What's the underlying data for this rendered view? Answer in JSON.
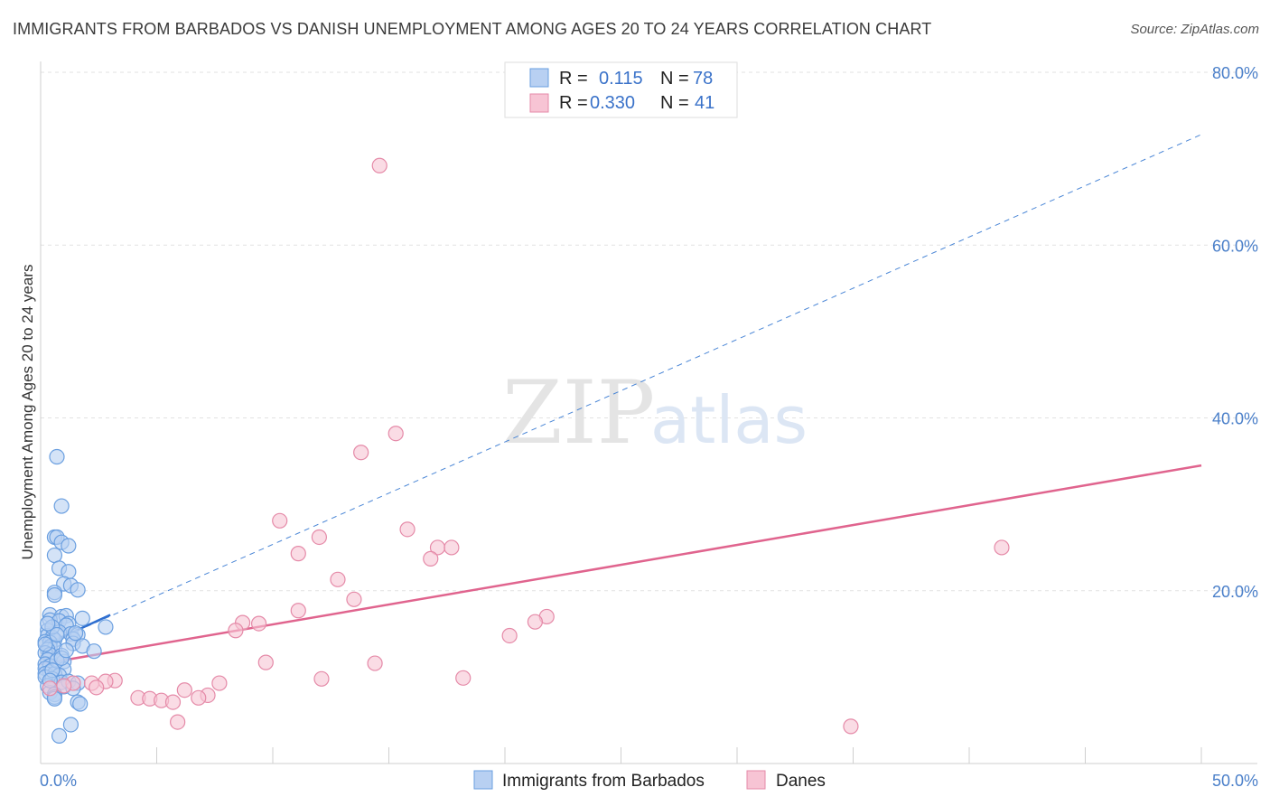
{
  "title": "IMMIGRANTS FROM BARBADOS VS DANISH UNEMPLOYMENT AMONG AGES 20 TO 24 YEARS CORRELATION CHART",
  "source": "Source: ZipAtlas.com",
  "watermark": {
    "zip": "ZIP",
    "atlas": "atlas"
  },
  "legend": {
    "rows": [
      {
        "r_label": "R =",
        "r_value": "0.115",
        "n_label": "N =",
        "n_value": "78"
      },
      {
        "r_label": "R =",
        "r_value": "0.330",
        "n_label": "N =",
        "n_value": "41"
      }
    ]
  },
  "chart_data": {
    "type": "scatter",
    "title": "IMMIGRANTS FROM BARBADOS VS DANISH UNEMPLOYMENT AMONG AGES 20 TO 24 YEARS CORRELATION CHART",
    "xlabel": "",
    "ylabel": "Unemployment Among Ages 20 to 24 years",
    "xlim": [
      0,
      50
    ],
    "ylim": [
      0,
      80
    ],
    "x_tick_labels": [
      {
        "value": 0,
        "label": "0.0%"
      },
      {
        "value": 50,
        "label": "50.0%"
      }
    ],
    "y_tick_labels": [
      {
        "value": 20,
        "label": "20.0%"
      },
      {
        "value": 40,
        "label": "40.0%"
      },
      {
        "value": 60,
        "label": "60.0%"
      },
      {
        "value": 80,
        "label": "80.0%"
      }
    ],
    "grid": true,
    "legend_position": "top-center",
    "series": [
      {
        "name": "Immigrants from Barbados",
        "color": "#6a9fe0",
        "fill": "#b8d0f2",
        "trend": {
          "x": [
            0,
            3
          ],
          "y": [
            13.5,
            17.2
          ],
          "style": "solid"
        },
        "trend_extension": {
          "x": [
            0,
            50
          ],
          "y": [
            13.5,
            72.8
          ],
          "style": "dashed"
        },
        "points": [
          [
            0.7,
            35.5
          ],
          [
            0.9,
            29.8
          ],
          [
            0.6,
            26.2
          ],
          [
            0.7,
            26.2
          ],
          [
            0.9,
            25.6
          ],
          [
            1.2,
            25.2
          ],
          [
            0.6,
            24.1
          ],
          [
            0.8,
            22.6
          ],
          [
            1.2,
            22.2
          ],
          [
            1.0,
            20.8
          ],
          [
            1.3,
            20.6
          ],
          [
            1.6,
            20.1
          ],
          [
            0.6,
            19.8
          ],
          [
            0.6,
            19.5
          ],
          [
            0.4,
            17.2
          ],
          [
            0.9,
            17.0
          ],
          [
            1.1,
            17.1
          ],
          [
            1.8,
            16.8
          ],
          [
            0.4,
            16.6
          ],
          [
            0.8,
            16.5
          ],
          [
            1.2,
            16.2
          ],
          [
            1.1,
            16.0
          ],
          [
            2.8,
            15.8
          ],
          [
            0.3,
            15.4
          ],
          [
            0.8,
            15.2
          ],
          [
            1.3,
            15.0
          ],
          [
            1.6,
            14.9
          ],
          [
            0.3,
            14.8
          ],
          [
            0.5,
            14.6
          ],
          [
            0.6,
            14.3
          ],
          [
            1.4,
            14.4
          ],
          [
            0.2,
            14.1
          ],
          [
            0.4,
            14.0
          ],
          [
            1.4,
            13.9
          ],
          [
            1.8,
            13.6
          ],
          [
            0.4,
            13.5
          ],
          [
            0.6,
            13.4
          ],
          [
            0.3,
            13.2
          ],
          [
            2.3,
            13.0
          ],
          [
            0.2,
            12.8
          ],
          [
            0.4,
            12.6
          ],
          [
            0.9,
            12.5
          ],
          [
            0.3,
            12.0
          ],
          [
            1.0,
            11.8
          ],
          [
            0.2,
            11.5
          ],
          [
            0.4,
            11.3
          ],
          [
            0.2,
            11.0
          ],
          [
            1.0,
            10.9
          ],
          [
            0.4,
            10.6
          ],
          [
            0.2,
            10.4
          ],
          [
            0.6,
            10.4
          ],
          [
            0.8,
            10.2
          ],
          [
            0.2,
            10.0
          ],
          [
            0.5,
            9.8
          ],
          [
            0.9,
            9.4
          ],
          [
            1.2,
            9.5
          ],
          [
            1.6,
            9.3
          ],
          [
            0.3,
            9.0
          ],
          [
            1.0,
            8.9
          ],
          [
            1.4,
            8.7
          ],
          [
            0.4,
            8.2
          ],
          [
            0.6,
            8.0
          ],
          [
            0.6,
            7.7
          ],
          [
            0.6,
            7.5
          ],
          [
            1.6,
            7.1
          ],
          [
            1.7,
            6.9
          ],
          [
            1.3,
            4.5
          ],
          [
            0.8,
            3.2
          ],
          [
            0.2,
            13.8
          ],
          [
            0.5,
            15.8
          ],
          [
            0.7,
            11.9
          ],
          [
            1.5,
            15.1
          ],
          [
            0.3,
            16.2
          ],
          [
            0.9,
            12.2
          ],
          [
            0.5,
            10.8
          ],
          [
            1.1,
            13.1
          ],
          [
            0.4,
            9.6
          ],
          [
            0.7,
            14.9
          ]
        ]
      },
      {
        "name": "Danes",
        "color": "#e58aa8",
        "fill": "#f7c4d4",
        "trend": {
          "x": [
            0,
            50
          ],
          "y": [
            11.5,
            34.5
          ],
          "style": "solid"
        },
        "points": [
          [
            14.6,
            69.2
          ],
          [
            15.3,
            38.2
          ],
          [
            13.8,
            36.0
          ],
          [
            10.3,
            28.1
          ],
          [
            15.8,
            27.1
          ],
          [
            12.0,
            26.2
          ],
          [
            17.1,
            25.0
          ],
          [
            17.7,
            25.0
          ],
          [
            41.4,
            25.0
          ],
          [
            11.1,
            24.3
          ],
          [
            16.8,
            23.7
          ],
          [
            12.8,
            21.3
          ],
          [
            13.5,
            19.0
          ],
          [
            11.1,
            17.7
          ],
          [
            21.8,
            17.0
          ],
          [
            8.7,
            16.3
          ],
          [
            9.4,
            16.2
          ],
          [
            21.3,
            16.4
          ],
          [
            8.4,
            15.4
          ],
          [
            20.2,
            14.8
          ],
          [
            9.7,
            11.7
          ],
          [
            14.4,
            11.6
          ],
          [
            12.1,
            9.8
          ],
          [
            18.2,
            9.9
          ],
          [
            3.2,
            9.6
          ],
          [
            2.2,
            9.3
          ],
          [
            2.8,
            9.5
          ],
          [
            7.7,
            9.3
          ],
          [
            6.2,
            8.5
          ],
          [
            2.4,
            8.8
          ],
          [
            7.2,
            7.9
          ],
          [
            4.2,
            7.6
          ],
          [
            4.7,
            7.5
          ],
          [
            5.2,
            7.3
          ],
          [
            5.7,
            7.1
          ],
          [
            6.8,
            7.6
          ],
          [
            1.4,
            9.3
          ],
          [
            1.0,
            9.0
          ],
          [
            0.4,
            8.7
          ],
          [
            5.9,
            4.8
          ],
          [
            34.9,
            4.3
          ]
        ]
      }
    ]
  }
}
